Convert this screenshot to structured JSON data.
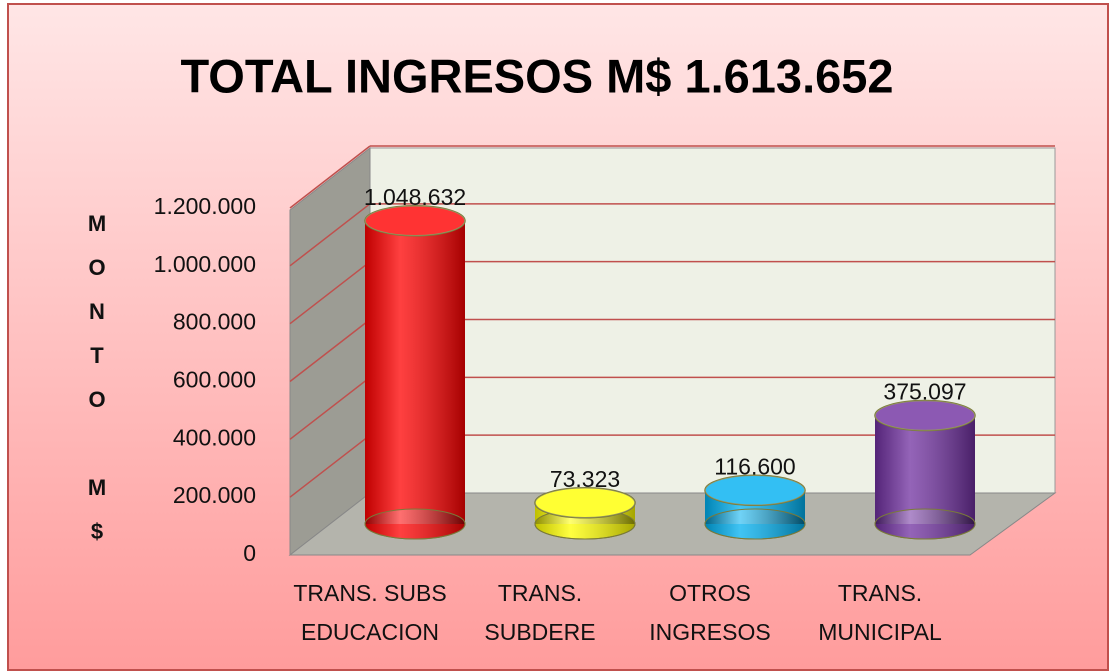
{
  "chart_data": {
    "type": "bar3d",
    "title": "TOTAL INGRESOS M$ 1.613.652",
    "y_label": "MONTO M$",
    "categories": [
      "TRANS. SUBS\nEDUCACION",
      "TRANS.\nSUBDERE",
      "OTROS\nINGRESOS",
      "TRANS.\nMUNICIPAL"
    ],
    "values": [
      1048632,
      73323,
      116600,
      375097
    ],
    "value_labels": [
      "1.048.632",
      "73.323",
      "116.600",
      "375.097"
    ],
    "colors": [
      "#ff0000",
      "#ffff00",
      "#00b0f0",
      "#7030a0"
    ],
    "ylim": [
      0,
      1200000
    ],
    "yticks": [
      0,
      {
        "value": 200000,
        "label": "200.000"
      },
      {
        "value": 400000,
        "label": "400.000"
      },
      {
        "value": 600000,
        "label": "600.000"
      },
      {
        "value": 800000,
        "label": "800.000"
      },
      {
        "value": 1000000,
        "label": "1.000.000"
      },
      {
        "value": 1200000,
        "label": "1.200.000"
      }
    ],
    "grid": true
  }
}
